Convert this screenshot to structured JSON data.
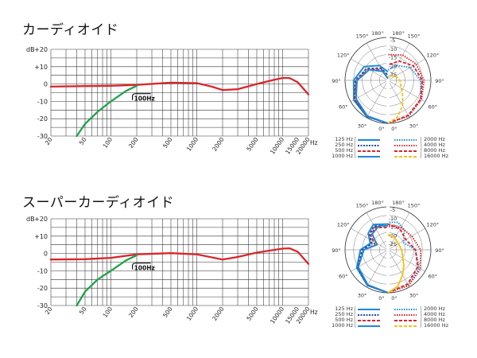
{
  "titles": {
    "cardioid": "カーディオイド",
    "supercardioid": "スーパーカーディオイド"
  },
  "colors": {
    "red": "#d9262b",
    "green": "#1fa24a",
    "blue": "#1e88d8",
    "darkblue": "#1f4ea3",
    "yellow": "#f4c218",
    "grid": "#333333"
  },
  "chart_data": [
    {
      "type": "line",
      "title": "カーディオイド",
      "xscale": "log",
      "xlim": [
        20,
        20000
      ],
      "ylim": [
        -30,
        20
      ],
      "ylabel": "dB",
      "xlabel": "Hz",
      "y_ticks": [
        "+20",
        "+10",
        "0",
        "-10",
        "-20",
        "-30"
      ],
      "x_ticks": [
        "20",
        "50",
        "100",
        "200",
        "500",
        "1000",
        "2000",
        "5000",
        "10000",
        "15000",
        "20000"
      ],
      "annotation": "100Hz",
      "series": [
        {
          "color": "#d9262b",
          "x": [
            20,
            50,
            100,
            200,
            500,
            1000,
            1500,
            2000,
            3000,
            5000,
            8000,
            10000,
            12000,
            15000,
            20000
          ],
          "y": [
            -1.5,
            -1.2,
            -1,
            -0.5,
            0.8,
            0.5,
            -1.5,
            -3.5,
            -3,
            0,
            2.5,
            3.5,
            3.5,
            1,
            -6
          ]
        },
        {
          "color": "#1fa24a",
          "x": [
            40,
            50,
            70,
            100,
            150,
            200
          ],
          "y": [
            -30,
            -23,
            -16,
            -10,
            -4,
            -1
          ]
        }
      ]
    },
    {
      "type": "line",
      "title": "スーパーカーディオイド",
      "xscale": "log",
      "xlim": [
        20,
        20000
      ],
      "ylim": [
        -30,
        20
      ],
      "ylabel": "dB",
      "xlabel": "Hz",
      "y_ticks": [
        "+20",
        "+10",
        "0",
        "-10",
        "-20",
        "-30"
      ],
      "x_ticks": [
        "20",
        "50",
        "100",
        "200",
        "500",
        "1000",
        "2000",
        "5000",
        "10000",
        "15000",
        "20000"
      ],
      "annotation": "100Hz",
      "series": [
        {
          "color": "#d9262b",
          "x": [
            20,
            50,
            100,
            200,
            500,
            1000,
            2000,
            3000,
            5000,
            10000,
            12000,
            15000,
            20000
          ],
          "y": [
            -3.5,
            -3.3,
            -2.5,
            -0.5,
            0.2,
            -0.5,
            -3.5,
            -2,
            0.5,
            2.8,
            3,
            1,
            -6
          ]
        },
        {
          "color": "#1fa24a",
          "x": [
            40,
            50,
            70,
            100,
            150,
            200
          ],
          "y": [
            -30,
            -22,
            -15,
            -10,
            -4,
            -1
          ]
        }
      ]
    }
  ],
  "polar": {
    "angles": [
      "180°",
      "150°",
      "120°",
      "90°",
      "60°",
      "30°",
      "0°"
    ],
    "rings": [
      "-25",
      "-20",
      "-15",
      "-10",
      "-5"
    ],
    "legend_left": [
      "125 Hz",
      "250 Hz",
      "500 Hz",
      "1000 Hz"
    ],
    "legend_right": [
      "2000 Hz",
      "4000 Hz",
      "8000 Hz",
      "16000 Hz"
    ]
  }
}
